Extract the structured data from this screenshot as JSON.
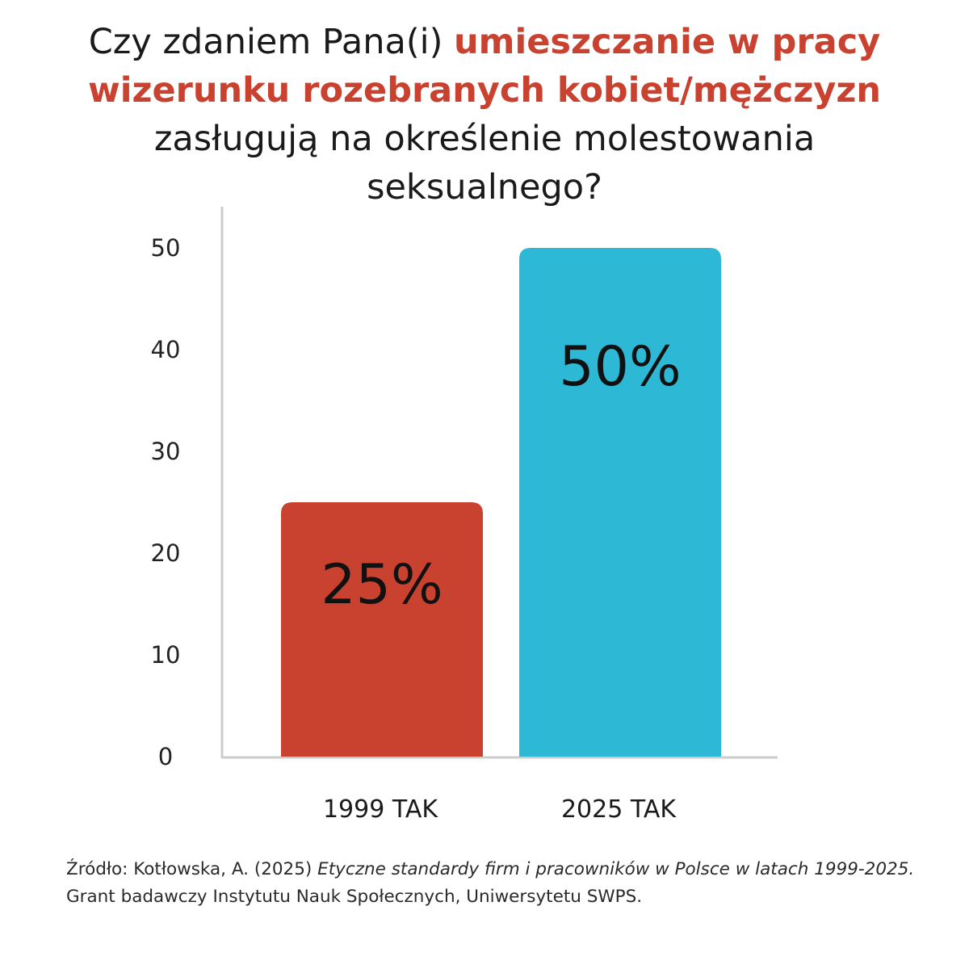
{
  "title": {
    "part1": "Czy zdaniem Pana(i) ",
    "highlight": "umieszczanie w pracy wizerunku rozebranych kobiet/mężczyzn",
    "part2": " zasługują na określenie molestowania seksualnego?"
  },
  "source": {
    "prefix": "Źródło: Kotłowska, A. (2025) ",
    "italic": "Etyczne standardy firm i  pracowników w Polsce w latach 1999-2025.",
    "suffix": " Grant badawczy Instytutu Nauk Społecznych, Uniwersytetu SWPS."
  },
  "colors": {
    "highlight": "#c9412f",
    "bar_1999": "#c9412f",
    "bar_2025": "#2db8d5",
    "axis": "#cccccc"
  },
  "chart_data": {
    "type": "bar",
    "categories": [
      "1999 TAK",
      "2025 TAK"
    ],
    "values": [
      25,
      50
    ],
    "value_labels": [
      "25%",
      "50%"
    ],
    "bar_colors": [
      "#c9412f",
      "#2db8d5"
    ],
    "yticks": [
      0,
      10,
      20,
      30,
      40,
      50
    ],
    "ylim": [
      0,
      50
    ],
    "grid": false,
    "legend": "none"
  }
}
